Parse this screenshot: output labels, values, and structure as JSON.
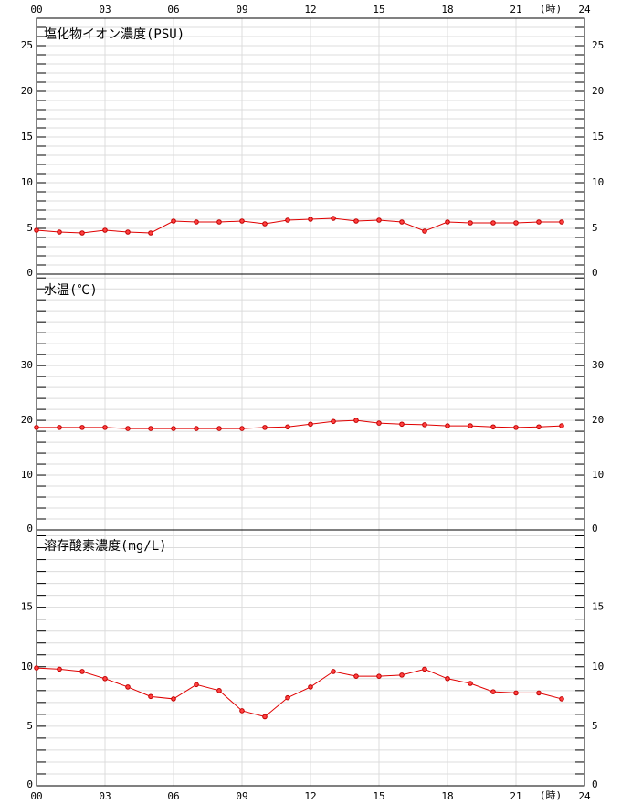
{
  "chart_data": [
    {
      "type": "line",
      "title": "塩化物イオン濃度(PSU)",
      "x_unit": "(時)",
      "x": [
        0,
        1,
        2,
        3,
        4,
        5,
        6,
        7,
        8,
        9,
        10,
        11,
        12,
        13,
        14,
        15,
        16,
        17,
        18,
        19,
        20,
        21,
        22,
        23
      ],
      "xlim": [
        0,
        24
      ],
      "xticks": [
        {
          "value": 0,
          "label": "00"
        },
        {
          "value": 3,
          "label": "03"
        },
        {
          "value": 6,
          "label": "06"
        },
        {
          "value": 9,
          "label": "09"
        },
        12,
        15,
        18,
        21,
        24
      ],
      "ylim": [
        0,
        28
      ],
      "yticks": [
        0,
        5,
        10,
        15,
        20,
        25
      ],
      "minor_yticks": [
        1,
        2,
        3,
        4,
        6,
        7,
        8,
        9,
        11,
        12,
        13,
        14,
        16,
        17,
        18,
        19,
        21,
        22,
        23,
        24,
        26,
        27
      ],
      "grid": true,
      "series": [
        {
          "color": "#e00000",
          "values": [
            4.8,
            4.6,
            4.5,
            4.8,
            4.6,
            4.5,
            5.8,
            5.7,
            5.7,
            5.8,
            5.5,
            5.9,
            6.0,
            6.1,
            5.8,
            5.9,
            5.7,
            4.7,
            5.7,
            5.6,
            5.6,
            5.6,
            5.7,
            5.7
          ]
        }
      ]
    },
    {
      "type": "line",
      "title": "水温(℃)",
      "x": [
        0,
        1,
        2,
        3,
        4,
        5,
        6,
        7,
        8,
        9,
        10,
        11,
        12,
        13,
        14,
        15,
        16,
        17,
        18,
        19,
        20,
        21,
        22,
        23
      ],
      "xlim": [
        0,
        24
      ],
      "xgrid": [
        3,
        6,
        9,
        12,
        15,
        18,
        21
      ],
      "ylim": [
        0,
        46.7
      ],
      "yticks": [
        0,
        10,
        20,
        30
      ],
      "minor_yticks": [
        2,
        4,
        6,
        8,
        12,
        14,
        16,
        18,
        22,
        24,
        26,
        28,
        32,
        34,
        36,
        38,
        40,
        42,
        44,
        46
      ],
      "grid": true,
      "series": [
        {
          "color": "#e00000",
          "values": [
            18.7,
            18.7,
            18.7,
            18.7,
            18.5,
            18.5,
            18.5,
            18.5,
            18.5,
            18.5,
            18.7,
            18.8,
            19.3,
            19.8,
            20.0,
            19.5,
            19.3,
            19.2,
            19.0,
            19.0,
            18.8,
            18.7,
            18.8,
            19.0
          ]
        }
      ]
    },
    {
      "type": "line",
      "title": "溶存酸素濃度(mg/L)",
      "x_unit": "(時)",
      "x": [
        0,
        1,
        2,
        3,
        4,
        5,
        6,
        7,
        8,
        9,
        10,
        11,
        12,
        13,
        14,
        15,
        16,
        17,
        18,
        19,
        20,
        21,
        22,
        23
      ],
      "xlim": [
        0,
        24
      ],
      "xticks": [
        {
          "value": 0,
          "label": "00"
        },
        {
          "value": 3,
          "label": "03"
        },
        {
          "value": 6,
          "label": "06"
        },
        {
          "value": 9,
          "label": "09"
        },
        12,
        15,
        18,
        21,
        24
      ],
      "ylim": [
        0,
        21.5
      ],
      "yticks": [
        0,
        5,
        10,
        15
      ],
      "minor_yticks": [
        1,
        2,
        3,
        4,
        6,
        7,
        8,
        9,
        11,
        12,
        13,
        14,
        16,
        17,
        18,
        19,
        20,
        21
      ],
      "grid": true,
      "series": [
        {
          "color": "#e00000",
          "values": [
            9.9,
            9.8,
            9.6,
            9.0,
            8.3,
            7.5,
            7.3,
            8.5,
            8.0,
            6.3,
            5.8,
            7.4,
            8.3,
            9.6,
            9.2,
            9.2,
            9.3,
            9.8,
            9.0,
            8.6,
            7.9,
            7.8,
            7.8,
            7.3
          ]
        }
      ]
    }
  ]
}
